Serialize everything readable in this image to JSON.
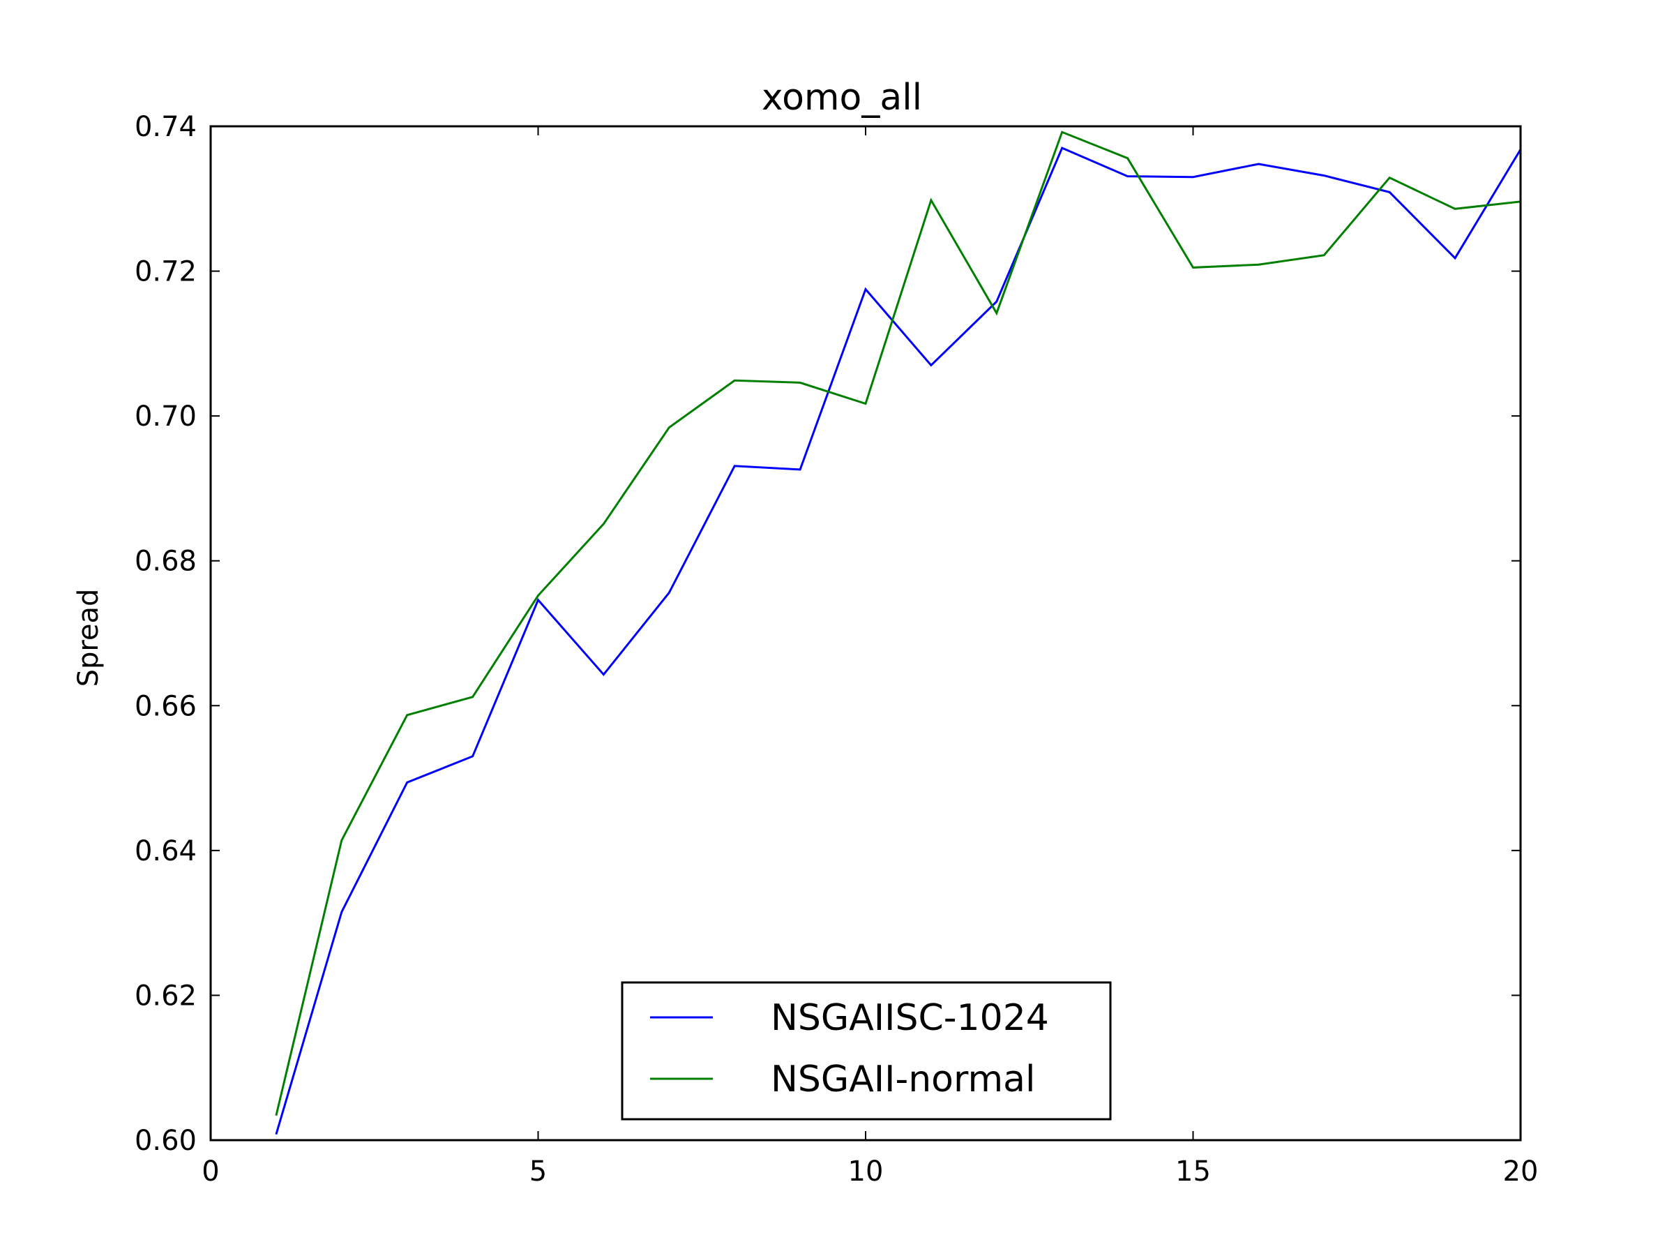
{
  "chart_data": {
    "type": "line",
    "title": "xomo_all",
    "xlabel": "",
    "ylabel": "Spread",
    "xlim": [
      0,
      20
    ],
    "ylim": [
      0.6,
      0.74
    ],
    "x_ticks": [
      "0",
      "5",
      "10",
      "15",
      "20"
    ],
    "y_ticks": [
      "0.60",
      "0.62",
      "0.64",
      "0.66",
      "0.68",
      "0.70",
      "0.72",
      "0.74"
    ],
    "x": [
      1,
      2,
      3,
      4,
      5,
      6,
      7,
      8,
      9,
      10,
      11,
      12,
      13,
      14,
      15,
      16,
      17,
      18,
      19,
      20
    ],
    "legend_position": "lower center",
    "grid": false,
    "series": [
      {
        "name": "NSGAIISC-1024",
        "color": "#0000ff",
        "values": [
          0.6008,
          0.6315,
          0.6494,
          0.653,
          0.6746,
          0.6643,
          0.6756,
          0.6931,
          0.6926,
          0.7175,
          0.707,
          0.7158,
          0.737,
          0.7331,
          0.733,
          0.7348,
          0.7332,
          0.7309,
          0.7218,
          0.7368
        ]
      },
      {
        "name": "NSGAII-normal",
        "color": "#007f00",
        "values": [
          0.6034,
          0.6414,
          0.6587,
          0.6612,
          0.6752,
          0.6851,
          0.6984,
          0.7049,
          0.7046,
          0.7017,
          0.7298,
          0.7142,
          0.7392,
          0.7356,
          0.7205,
          0.7209,
          0.7222,
          0.7329,
          0.7286,
          0.7296
        ]
      }
    ]
  }
}
